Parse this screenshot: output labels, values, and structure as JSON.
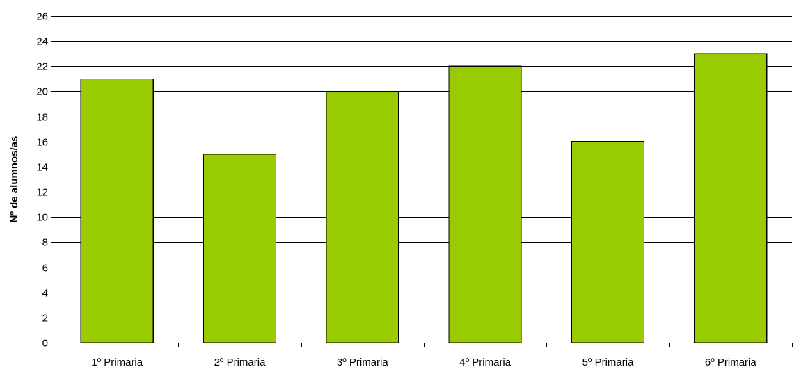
{
  "chart_data": {
    "type": "bar",
    "categories": [
      "1º Primaria",
      "2º Primaria",
      "3º Primaria",
      "4º Primaria",
      "5º Primaria",
      "6º Primaria"
    ],
    "series": [
      {
        "values": [
          21,
          15,
          20,
          22,
          16,
          23
        ]
      }
    ],
    "title": "",
    "xlabel": "",
    "ylabel": "Nº de alumnos/as",
    "ylim": [
      0,
      26
    ],
    "yticks": [
      0,
      2,
      4,
      6,
      8,
      10,
      12,
      14,
      16,
      18,
      20,
      22,
      24,
      26
    ],
    "grid": true,
    "legend": "none",
    "colors": {
      "bar_fill": "#99cc00",
      "bar_stroke": "#000000",
      "grid": "#000000"
    }
  }
}
